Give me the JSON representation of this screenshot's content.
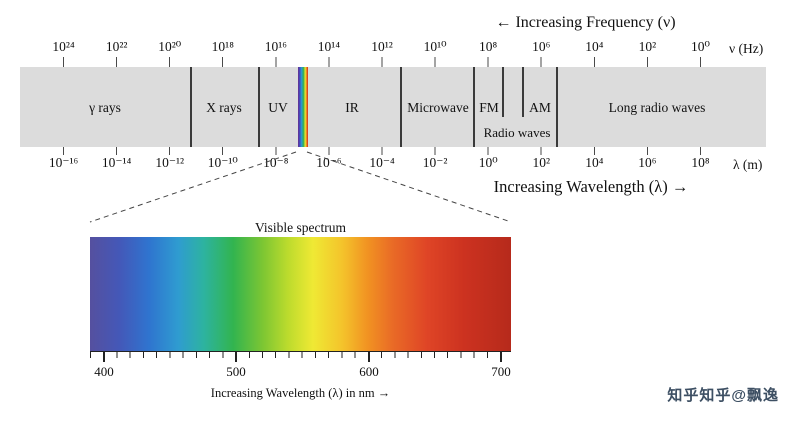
{
  "titles": {
    "frequency": "← Increasing Frequency (ν)",
    "wavelength": "Increasing Wavelength (λ) →"
  },
  "frequency_axis": {
    "unit": "ν (Hz)",
    "labels": [
      "10²⁴",
      "10²²",
      "10²⁰",
      "10¹⁸",
      "10¹⁶",
      "10¹⁴",
      "10¹²",
      "10¹⁰",
      "10⁸",
      "10⁶",
      "10⁴",
      "10²",
      "10⁰"
    ]
  },
  "wavelength_axis": {
    "unit": "λ (m)",
    "labels": [
      "10⁻¹⁶",
      "10⁻¹⁴",
      "10⁻¹²",
      "10⁻¹⁰",
      "10⁻⁸",
      "10⁻⁶",
      "10⁻⁴",
      "10⁻²",
      "10⁰",
      "10²",
      "10⁴",
      "10⁶",
      "10⁸"
    ]
  },
  "band": {
    "gamma": "γ rays",
    "xray": "X rays",
    "uv": "UV",
    "ir": "IR",
    "microwave": "Microwave",
    "fm": "FM",
    "am": "AM",
    "radio": "Radio waves",
    "long_radio": "Long radio waves",
    "background": "#dcdcdc",
    "strip_gradient": [
      "#6a2d8f 0%",
      "#3e4ec0 18%",
      "#2d9ad3 36%",
      "#2fb04c 55%",
      "#e8e531 72%",
      "#ef8c1f 85%",
      "#cf271d 100%"
    ]
  },
  "visible": {
    "title": "Visible spectrum",
    "caption": "Increasing Wavelength (λ) in nm →",
    "tick_labels": [
      "400",
      "500",
      "600",
      "700"
    ],
    "gradient": [
      "#55509f 0%",
      "#4458b8 7%",
      "#2f74cf 14%",
      "#2f9cd0 21%",
      "#2db3a0 27%",
      "#32b44f 34%",
      "#7cc633 41%",
      "#bcdb2d 47%",
      "#efe934 53%",
      "#f4c32b 60%",
      "#f19222 66%",
      "#e96a26 72%",
      "#df4526 80%",
      "#cc3220 89%",
      "#b62a1b 100%"
    ]
  },
  "watermark": "知乎知乎@飘逸"
}
